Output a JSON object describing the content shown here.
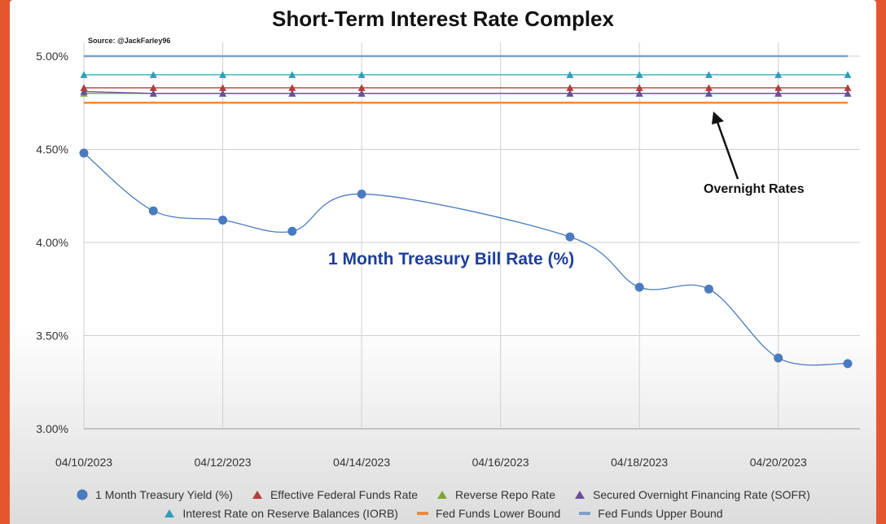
{
  "header": {
    "title": "Short-Term Interest Rate Complex",
    "source": "Source: @JackFarley96"
  },
  "annotations": {
    "overnight": "Overnight Rates",
    "tbill": "1 Month Treasury Bill Rate (%)"
  },
  "chart_data": {
    "type": "line",
    "title": "Short-Term Interest Rate Complex",
    "xlabel": "",
    "ylabel": "",
    "ylim": [
      3.0,
      5.0
    ],
    "y_ticks": [
      3.0,
      3.5,
      4.0,
      4.5,
      5.0
    ],
    "y_tick_labels": [
      "3.00%",
      "3.50%",
      "4.00%",
      "4.50%",
      "5.00%"
    ],
    "x_dates": [
      "04/10/2023",
      "04/11/2023",
      "04/12/2023",
      "04/13/2023",
      "04/14/2023",
      "04/17/2023",
      "04/18/2023",
      "04/19/2023",
      "04/20/2023",
      "04/21/2023"
    ],
    "x_tick_labels": [
      "04/10/2023",
      "04/12/2023",
      "04/14/2023",
      "04/16/2023",
      "04/18/2023",
      "04/20/2023"
    ],
    "grid": true,
    "legend_position": "bottom",
    "series": [
      {
        "name": "1 Month Treasury Yield (%)",
        "marker": "circle",
        "color": "#4a7bbf",
        "smooth": true,
        "values": [
          4.48,
          4.17,
          4.12,
          4.06,
          4.26,
          4.03,
          3.76,
          3.75,
          3.38,
          3.35
        ]
      },
      {
        "name": "Effective Federal Funds Rate",
        "marker": "triangle",
        "color": "#b83a3a",
        "values": [
          4.83,
          4.83,
          4.83,
          4.83,
          4.83,
          4.83,
          4.83,
          4.83,
          4.83,
          4.83
        ]
      },
      {
        "name": "Reverse Repo Rate",
        "marker": "triangle",
        "color": "#7fa535",
        "values": [
          4.8,
          4.8,
          4.8,
          4.8,
          4.8,
          4.8,
          4.8,
          4.8,
          4.8,
          4.8
        ]
      },
      {
        "name": "Secured Overnight Financing Rate (SOFR)",
        "marker": "triangle",
        "color": "#6a4e9c",
        "values": [
          4.81,
          4.8,
          4.8,
          4.8,
          4.8,
          4.8,
          4.8,
          4.8,
          4.8,
          4.8
        ]
      },
      {
        "name": "Interest Rate on Reserve Balances (IORB)",
        "marker": "triangle",
        "color": "#2e9fb8",
        "values": [
          4.9,
          4.9,
          4.9,
          4.9,
          4.9,
          4.9,
          4.9,
          4.9,
          4.9,
          4.9
        ]
      },
      {
        "name": "Fed Funds Lower Bound",
        "marker": "line",
        "color": "#ee8a3c",
        "values": [
          4.75,
          4.75,
          4.75,
          4.75,
          4.75,
          4.75,
          4.75,
          4.75,
          4.75,
          4.75
        ]
      },
      {
        "name": "Fed Funds Upper Bound",
        "marker": "line",
        "color": "#7d9fc9",
        "values": [
          5.0,
          5.0,
          5.0,
          5.0,
          5.0,
          5.0,
          5.0,
          5.0,
          5.0,
          5.0
        ]
      }
    ]
  }
}
